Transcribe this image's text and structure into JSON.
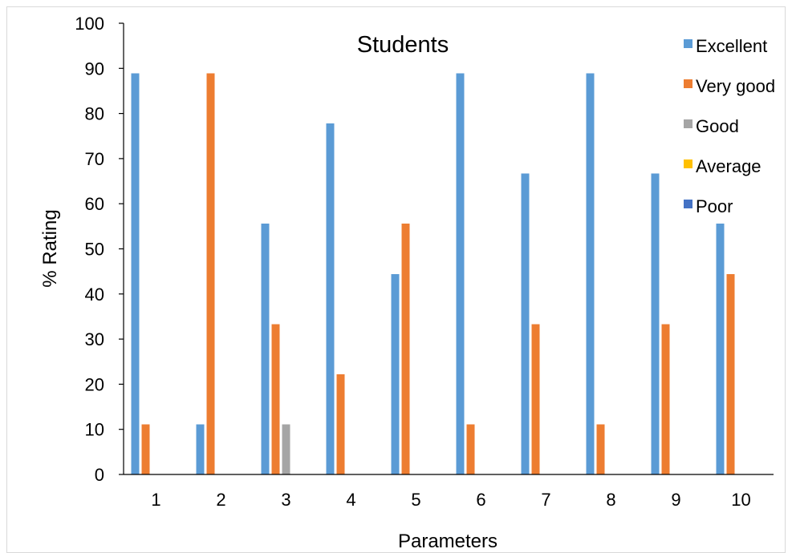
{
  "chart_data": {
    "type": "bar",
    "title": "Students",
    "xlabel": "Parameters",
    "ylabel": "% Rating",
    "categories": [
      "1",
      "2",
      "3",
      "4",
      "5",
      "6",
      "7",
      "8",
      "9",
      "10"
    ],
    "ylim": [
      0,
      100
    ],
    "yticks": [
      0,
      10,
      20,
      30,
      40,
      50,
      60,
      70,
      80,
      90,
      100
    ],
    "grid": false,
    "legend_position": "right",
    "series": [
      {
        "name": "Excellent",
        "color": "#5B9BD5",
        "values": [
          88.9,
          11.1,
          55.6,
          77.8,
          44.4,
          88.9,
          66.7,
          88.9,
          66.7,
          55.6
        ]
      },
      {
        "name": "Very good",
        "color": "#ED7D31",
        "values": [
          11.1,
          88.9,
          33.3,
          22.2,
          55.6,
          11.1,
          33.3,
          11.1,
          33.3,
          44.4
        ]
      },
      {
        "name": "Good",
        "color": "#A5A5A5",
        "values": [
          0,
          0,
          11.1,
          0,
          0,
          0,
          0,
          0,
          0,
          0
        ]
      },
      {
        "name": "Average",
        "color": "#FFC000",
        "values": [
          0,
          0,
          0,
          0,
          0,
          0,
          0,
          0,
          0,
          0
        ]
      },
      {
        "name": "Poor",
        "color": "#4472C4",
        "values": [
          0,
          0,
          0,
          0,
          0,
          0,
          0,
          0,
          0,
          0
        ]
      }
    ]
  }
}
